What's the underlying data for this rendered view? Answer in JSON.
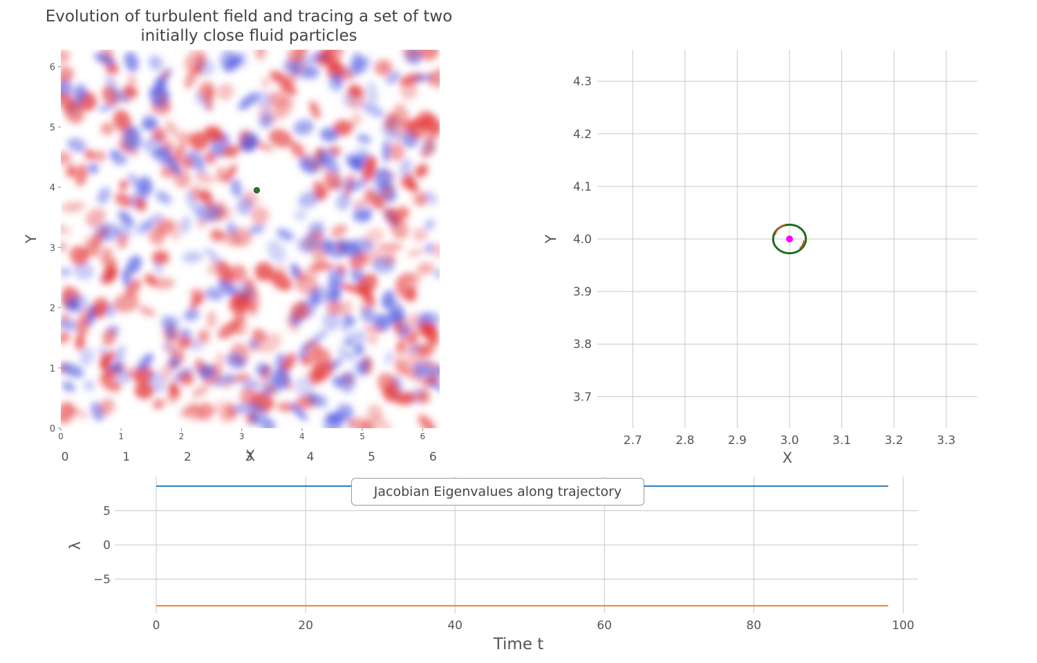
{
  "figure": {
    "title": "Evolution of turbulent field and tracing a set of two initially close fluid particles"
  },
  "chart_data": [
    {
      "type": "heatmap",
      "xlabel": "X",
      "ylabel": "Y",
      "xlim": [
        0,
        6.283
      ],
      "ylim": [
        0,
        6.283
      ],
      "xticks": [
        "0",
        "1",
        "2",
        "3",
        "4",
        "5",
        "6"
      ],
      "yticks": [
        "0",
        "1",
        "2",
        "3",
        "4",
        "5",
        "6"
      ],
      "colormap": "bwr",
      "particles": [
        {
          "name": "",
          "x": 3.25,
          "y": 3.95,
          "color": "#2a7a2a"
        }
      ]
    },
    {
      "type": "line",
      "xlabel": "X",
      "ylabel": "Y",
      "xlim": [
        2.64,
        3.36
      ],
      "ylim": [
        3.64,
        4.36
      ],
      "xticks": [
        "2.7",
        "2.8",
        "2.9",
        "3.0",
        "3.1",
        "3.2",
        "3.3"
      ],
      "yticks": [
        "3.7",
        "3.8",
        "3.9",
        "4.0",
        "4.1",
        "4.2",
        "4.3"
      ],
      "grid": true,
      "series": [
        {
          "name": "",
          "shape": "circle",
          "cx": 3.0,
          "cy": 4.0,
          "r": 0.03,
          "color": "#1e6e1e"
        },
        {
          "name": "",
          "shape": "arc",
          "cx": 3.0,
          "cy": 4.0,
          "r": 0.03,
          "color": "#d45020"
        }
      ],
      "center_point": {
        "x": 3.0,
        "y": 4.0,
        "color": "#ff00ff"
      }
    },
    {
      "type": "line",
      "title": "Jacobian Eigenvalues along trajectory",
      "xlabel": "Time t",
      "ylabel": "λ",
      "xlim": [
        -5,
        102
      ],
      "ylim": [
        -10,
        10
      ],
      "xticks": [
        "0",
        "20",
        "40",
        "60",
        "80",
        "100"
      ],
      "yticks": [
        "−5",
        "0",
        "5"
      ],
      "grid": true,
      "legend_position": "top-center",
      "series": [
        {
          "name": "",
          "color": "#2878b8",
          "x": [
            0,
            98
          ],
          "y": [
            8.6,
            8.6
          ]
        },
        {
          "name": "",
          "color": "#f08030",
          "x": [
            0,
            98
          ],
          "y": [
            -8.9,
            -8.9
          ]
        }
      ]
    }
  ]
}
